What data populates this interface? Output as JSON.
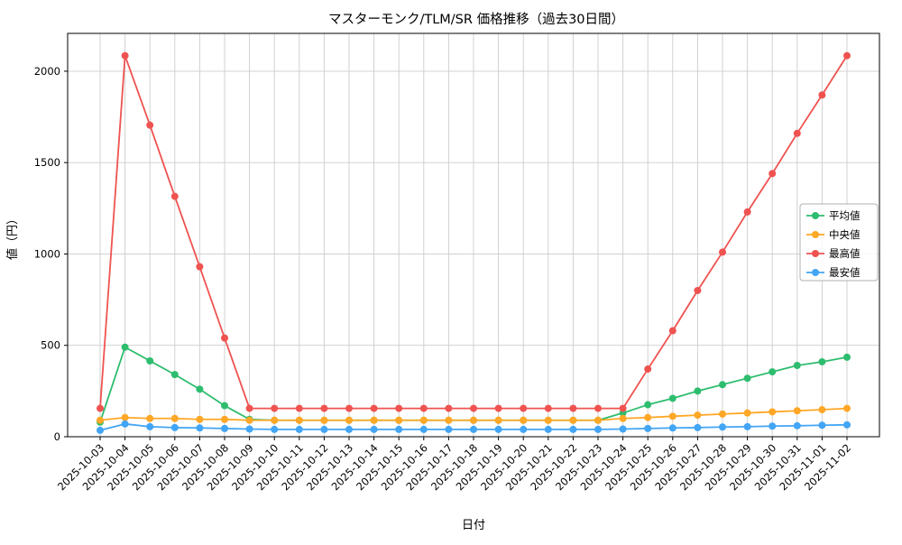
{
  "chart_data": {
    "type": "line",
    "title": "マスターモンク/TLM/SR 価格推移（過去30日間）",
    "xlabel": "日付",
    "ylabel": "値（円）",
    "ylim": [
      0,
      2207
    ],
    "yticks": [
      0,
      500,
      1000,
      1500,
      2000
    ],
    "grid": true,
    "grid_color": "#cccccc",
    "legend_position": "center-right",
    "categories": [
      "2025-10-03",
      "2025-10-04",
      "2025-10-05",
      "2025-10-06",
      "2025-10-07",
      "2025-10-08",
      "2025-10-09",
      "2025-10-10",
      "2025-10-11",
      "2025-10-12",
      "2025-10-13",
      "2025-10-14",
      "2025-10-15",
      "2025-10-16",
      "2025-10-17",
      "2025-10-18",
      "2025-10-19",
      "2025-10-20",
      "2025-10-21",
      "2025-10-22",
      "2025-10-23",
      "2025-10-24",
      "2025-10-25",
      "2025-10-26",
      "2025-10-27",
      "2025-10-28",
      "2025-10-29",
      "2025-10-30",
      "2025-10-31",
      "2025-11-01",
      "2025-11-02"
    ],
    "series": [
      {
        "name": "平均値",
        "key": "average",
        "color": "#2ebd6e",
        "values": [
          80,
          490,
          415,
          340,
          260,
          170,
          95,
          90,
          90,
          90,
          90,
          90,
          90,
          90,
          90,
          90,
          90,
          90,
          90,
          90,
          90,
          130,
          175,
          210,
          250,
          285,
          320,
          355,
          390,
          410,
          435
        ]
      },
      {
        "name": "中央値",
        "key": "median",
        "color": "#ffa726",
        "values": [
          90,
          105,
          100,
          100,
          95,
          95,
          90,
          90,
          90,
          90,
          90,
          90,
          90,
          90,
          90,
          90,
          90,
          90,
          90,
          90,
          90,
          100,
          105,
          112,
          118,
          124,
          130,
          136,
          142,
          148,
          155
        ]
      },
      {
        "name": "最高値",
        "key": "highest",
        "color": "#ef5350",
        "values": [
          155,
          2085,
          1705,
          1315,
          930,
          540,
          155,
          155,
          155,
          155,
          155,
          155,
          155,
          155,
          155,
          155,
          155,
          155,
          155,
          155,
          155,
          155,
          370,
          580,
          800,
          1010,
          1230,
          1440,
          1660,
          1870,
          2085
        ]
      },
      {
        "name": "最安値",
        "key": "lowest",
        "color": "#42a5f5",
        "values": [
          35,
          70,
          55,
          50,
          48,
          45,
          42,
          40,
          40,
          40,
          40,
          40,
          40,
          40,
          40,
          40,
          40,
          40,
          40,
          40,
          40,
          42,
          45,
          48,
          50,
          53,
          55,
          58,
          60,
          63,
          65
        ]
      }
    ]
  }
}
